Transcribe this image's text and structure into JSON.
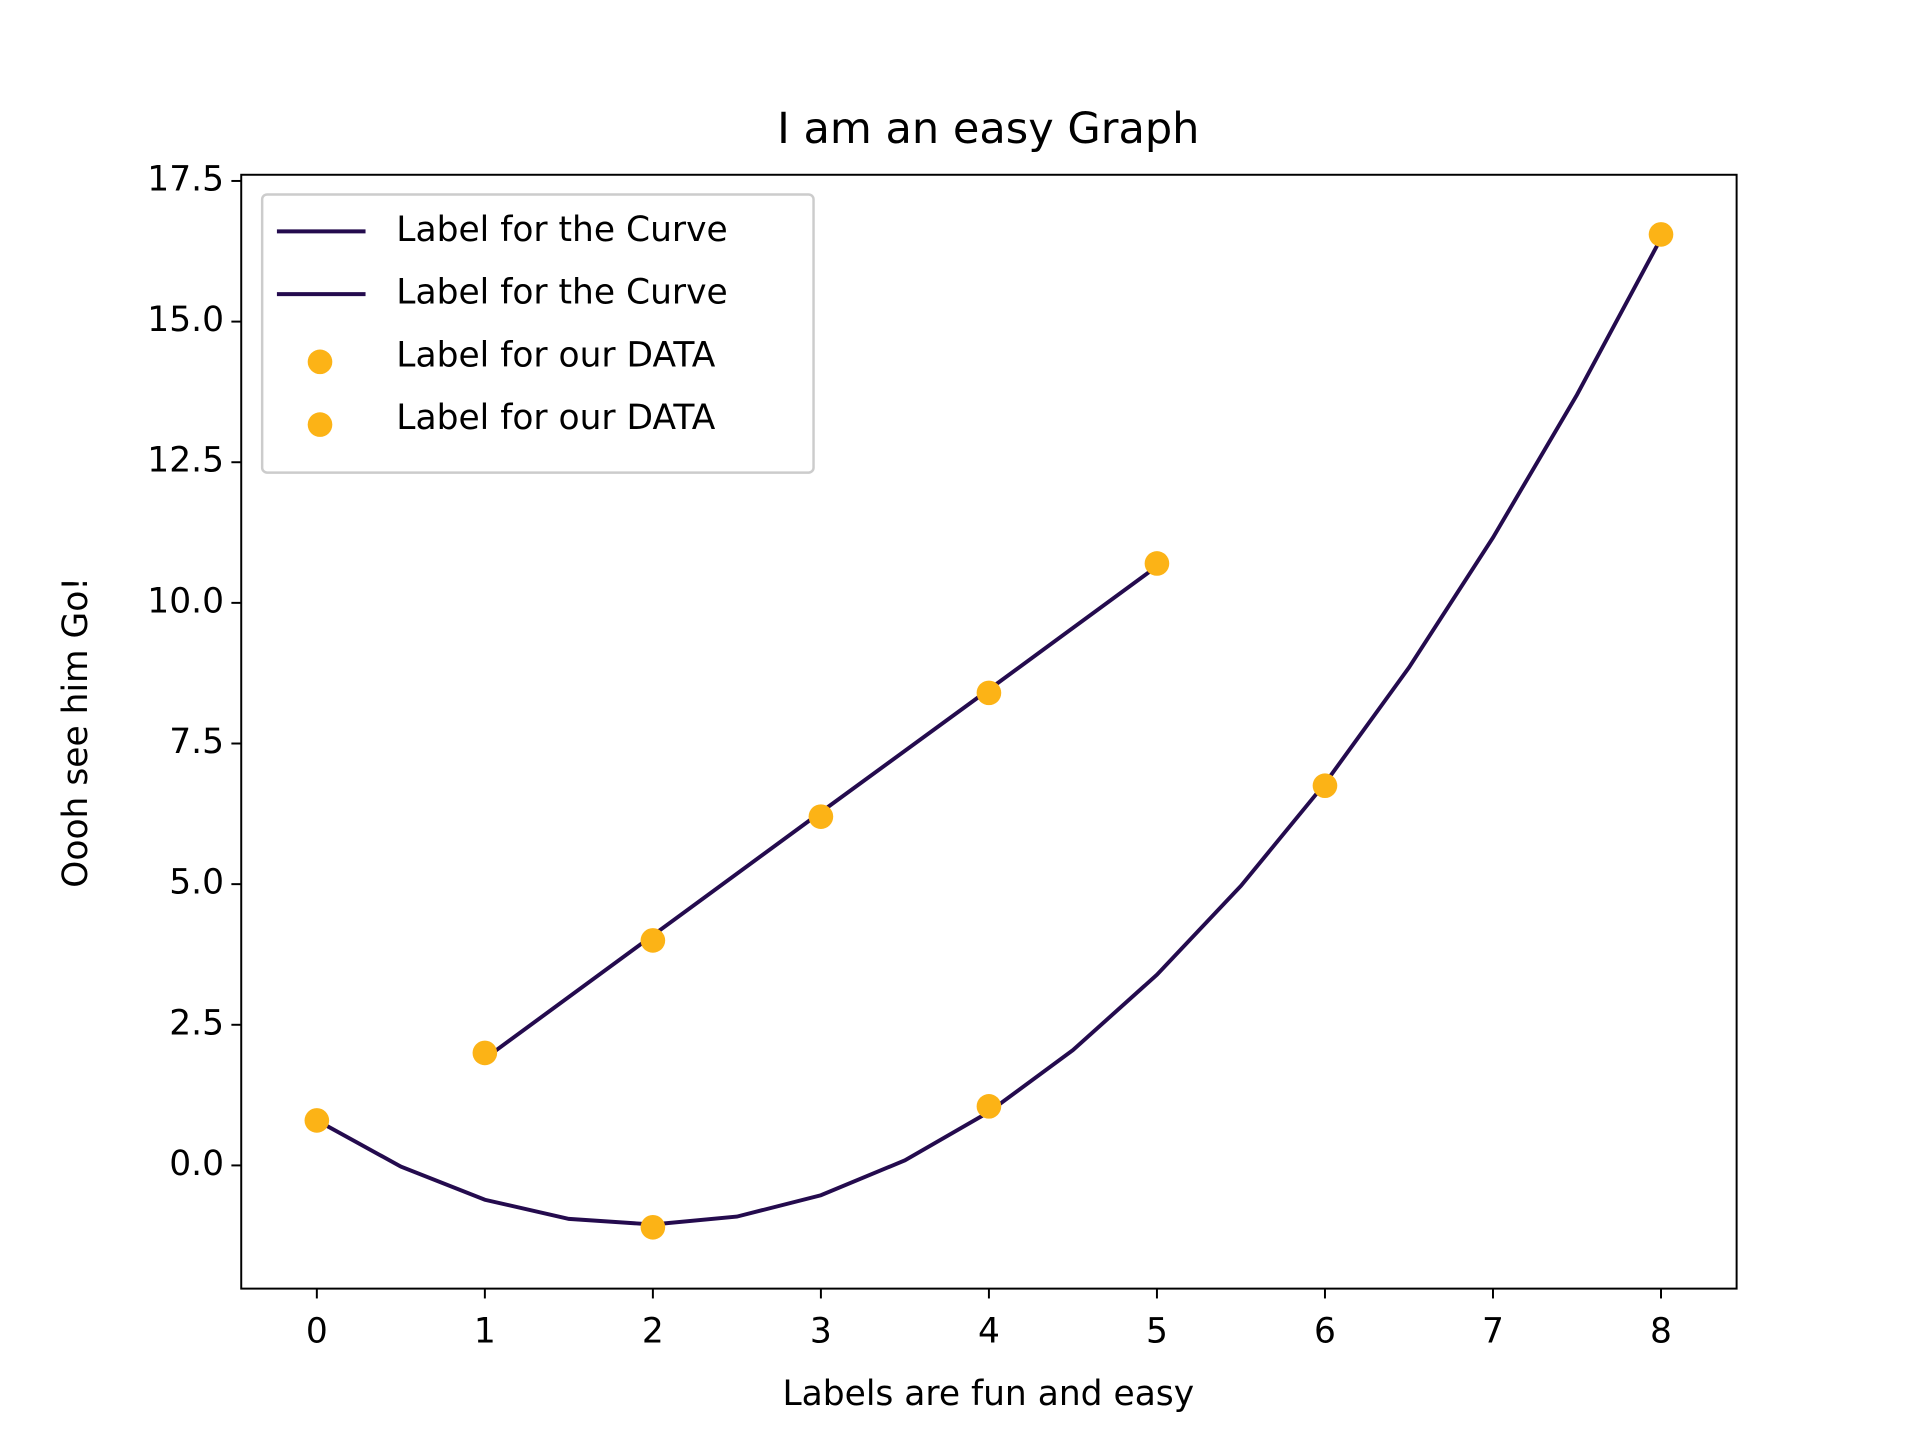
{
  "chart_data": {
    "type": "line",
    "title": "I am an easy Graph",
    "x_label": "Labels are fun and easy",
    "y_label": "Oooh see him Go!",
    "xlim": [
      -0.45,
      8.45
    ],
    "ylim": [
      -2.19,
      17.61
    ],
    "xticks": [
      0,
      1,
      2,
      3,
      4,
      5,
      6,
      7,
      8
    ],
    "yticks": [
      {
        "value": 0,
        "label": "0.0"
      },
      2.5,
      {
        "value": 5,
        "label": "5.0"
      },
      7.5,
      {
        "value": 10,
        "label": "10.0"
      },
      12.5,
      {
        "value": 15,
        "label": "15.0"
      },
      17.5
    ],
    "grid": false,
    "legend": "upper-left",
    "series": [
      {
        "name": "Label for the Curve",
        "type": "line",
        "color": "#240b4e",
        "x": [
          0,
          0.5,
          1,
          1.5,
          2,
          2.5,
          3,
          3.5,
          4,
          4.5,
          5,
          5.5,
          6,
          6.5,
          7,
          7.5,
          8
        ],
        "values": [
          0.8,
          -0.02,
          -0.61,
          -0.95,
          -1.05,
          -0.91,
          -0.53,
          0.09,
          0.95,
          2.05,
          3.39,
          4.97,
          6.79,
          8.85,
          11.16,
          13.7,
          16.48
        ]
      },
      {
        "name": "Label for the Curve",
        "type": "line",
        "color": "#240b4e",
        "x": [
          1,
          2,
          3,
          4,
          5
        ],
        "values": [
          1.9,
          4.09,
          6.28,
          8.46,
          10.65
        ]
      },
      {
        "name": "Label for our DATA",
        "type": "scatter",
        "color": "#fcb316",
        "x": [
          0,
          2,
          4,
          6,
          8
        ],
        "values": [
          0.8,
          -1.1,
          1.05,
          6.75,
          16.55
        ]
      },
      {
        "name": "Label for our DATA",
        "type": "scatter",
        "color": "#fcb316",
        "x": [
          1,
          2,
          3,
          4,
          5
        ],
        "values": [
          2.0,
          4.0,
          6.2,
          8.4,
          10.7
        ]
      }
    ]
  }
}
